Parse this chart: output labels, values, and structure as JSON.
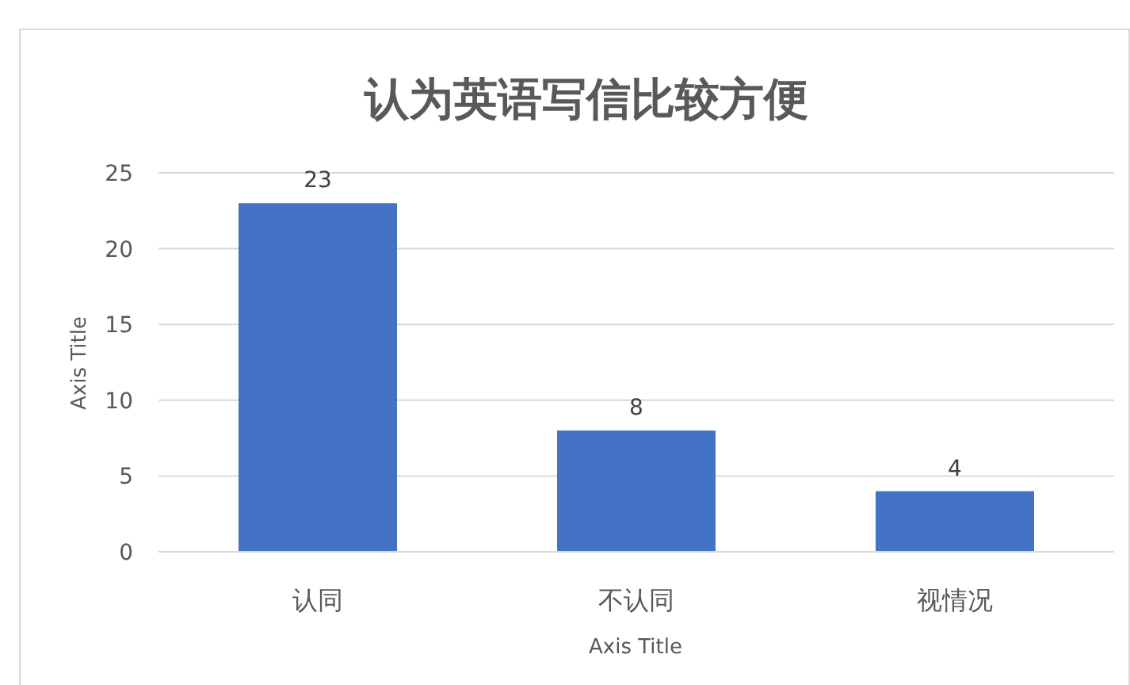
{
  "chart_data": {
    "type": "bar",
    "title": "认为英语写信比较方便",
    "xlabel": "Axis Title",
    "ylabel": "Axis Title",
    "categories": [
      "认同",
      "不认同",
      "视情况"
    ],
    "values": [
      23,
      8,
      4
    ],
    "color": "#4472c4",
    "ylim": [
      0,
      25
    ],
    "yticks": [
      0,
      5,
      10,
      15,
      20,
      25
    ],
    "grid": "y",
    "data_labels": true
  }
}
